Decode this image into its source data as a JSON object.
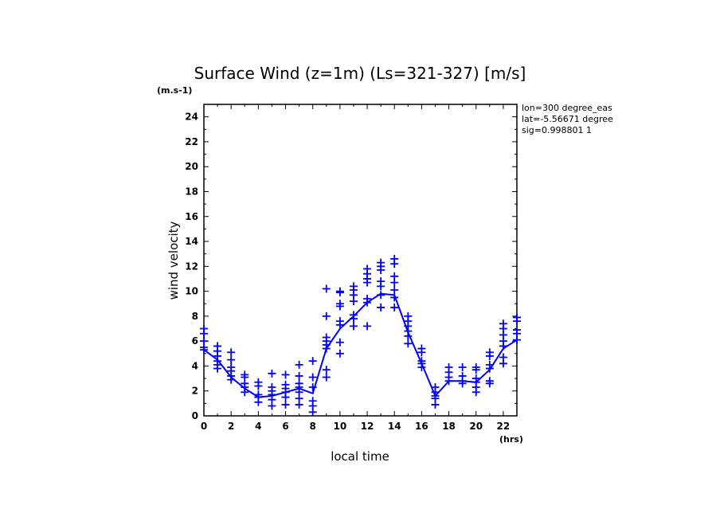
{
  "chart_data": {
    "type": "scatter",
    "title": "Surface Wind (z=1m) (Ls=321-327) [m/s]",
    "ylabel": "wind velocity",
    "yunit": "(m.s-1)",
    "xlabel": "local time",
    "xunit": "(hrs)",
    "xlim": [
      0,
      23
    ],
    "ylim": [
      0,
      25
    ],
    "xticks": [
      0,
      2,
      4,
      6,
      8,
      10,
      12,
      14,
      16,
      18,
      20,
      22
    ],
    "yticks": [
      0,
      2,
      4,
      6,
      8,
      10,
      12,
      14,
      16,
      18,
      20,
      22,
      24
    ],
    "annotations": [
      "lon=300 degree_eas",
      "lat=-5.56671 degree",
      "sig=0.998801 1"
    ],
    "colors": {
      "series": "#0000ff",
      "axes": "#000000"
    },
    "mean_line": {
      "x": [
        0,
        1,
        2,
        3,
        4,
        5,
        6,
        7,
        8,
        9,
        10,
        11,
        12,
        13,
        14,
        15,
        16,
        17,
        18,
        19,
        20,
        21,
        22,
        23
      ],
      "y": [
        5.3,
        4.5,
        3.1,
        2.2,
        1.5,
        1.6,
        1.9,
        2.2,
        1.8,
        5.4,
        7.0,
        8.0,
        9.1,
        9.8,
        9.7,
        6.7,
        4.2,
        1.6,
        2.8,
        2.8,
        2.7,
        3.7,
        5.4,
        6.1
      ]
    },
    "points": [
      [
        0,
        7.0
      ],
      [
        0,
        6.6
      ],
      [
        0,
        6.0
      ],
      [
        0,
        5.5
      ],
      [
        0,
        5.3
      ],
      [
        1,
        5.6
      ],
      [
        1,
        5.2
      ],
      [
        1,
        4.8
      ],
      [
        1,
        4.4
      ],
      [
        1,
        4.1
      ],
      [
        1,
        3.8
      ],
      [
        2,
        5.1
      ],
      [
        2,
        4.5
      ],
      [
        2,
        3.9
      ],
      [
        2,
        3.6
      ],
      [
        2,
        3.2
      ],
      [
        2,
        2.9
      ],
      [
        3,
        3.3
      ],
      [
        3,
        3.1
      ],
      [
        3,
        2.6
      ],
      [
        3,
        2.3
      ],
      [
        3,
        1.9
      ],
      [
        4,
        2.7
      ],
      [
        4,
        2.4
      ],
      [
        4,
        1.7
      ],
      [
        4,
        1.5
      ],
      [
        4,
        1.1
      ],
      [
        5,
        3.4
      ],
      [
        5,
        2.3
      ],
      [
        5,
        2.0
      ],
      [
        5,
        1.7
      ],
      [
        5,
        1.3
      ],
      [
        5,
        0.8
      ],
      [
        6,
        3.3
      ],
      [
        6,
        2.5
      ],
      [
        6,
        2.2
      ],
      [
        6,
        1.9
      ],
      [
        6,
        1.5
      ],
      [
        6,
        0.9
      ],
      [
        7,
        4.1
      ],
      [
        7,
        3.2
      ],
      [
        7,
        2.6
      ],
      [
        7,
        2.3
      ],
      [
        7,
        1.9
      ],
      [
        7,
        1.4
      ],
      [
        7,
        0.9
      ],
      [
        8,
        4.4
      ],
      [
        8,
        3.1
      ],
      [
        8,
        2.3
      ],
      [
        8,
        1.2
      ],
      [
        8,
        0.8
      ],
      [
        8,
        0.3
      ],
      [
        9,
        10.2
      ],
      [
        9,
        8.0
      ],
      [
        9,
        6.3
      ],
      [
        9,
        6.0
      ],
      [
        9,
        5.7
      ],
      [
        9,
        5.4
      ],
      [
        9,
        3.7
      ],
      [
        9,
        3.1
      ],
      [
        10,
        10.0
      ],
      [
        10,
        9.9
      ],
      [
        10,
        9.0
      ],
      [
        10,
        8.8
      ],
      [
        10,
        7.6
      ],
      [
        10,
        7.3
      ],
      [
        10,
        5.9
      ],
      [
        10,
        5.0
      ],
      [
        11,
        10.4
      ],
      [
        11,
        10.1
      ],
      [
        11,
        9.7
      ],
      [
        11,
        9.2
      ],
      [
        11,
        8.1
      ],
      [
        11,
        7.8
      ],
      [
        11,
        7.2
      ],
      [
        12,
        11.8
      ],
      [
        12,
        11.4
      ],
      [
        12,
        11.0
      ],
      [
        12,
        10.7
      ],
      [
        12,
        9.4
      ],
      [
        12,
        9.1
      ],
      [
        12,
        7.2
      ],
      [
        13,
        12.3
      ],
      [
        13,
        12.0
      ],
      [
        13,
        11.7
      ],
      [
        13,
        10.8
      ],
      [
        13,
        10.4
      ],
      [
        13,
        9.7
      ],
      [
        13,
        8.7
      ],
      [
        14,
        12.6
      ],
      [
        14,
        12.2
      ],
      [
        14,
        11.2
      ],
      [
        14,
        10.7
      ],
      [
        14,
        10.1
      ],
      [
        14,
        9.5
      ],
      [
        14,
        8.7
      ],
      [
        15,
        8.0
      ],
      [
        15,
        7.6
      ],
      [
        15,
        7.2
      ],
      [
        15,
        6.8
      ],
      [
        15,
        6.4
      ],
      [
        15,
        5.8
      ],
      [
        16,
        5.4
      ],
      [
        16,
        5.1
      ],
      [
        16,
        4.4
      ],
      [
        16,
        4.2
      ],
      [
        16,
        3.9
      ],
      [
        17,
        2.3
      ],
      [
        17,
        1.9
      ],
      [
        17,
        1.6
      ],
      [
        17,
        1.4
      ],
      [
        17,
        0.9
      ],
      [
        18,
        3.9
      ],
      [
        18,
        3.5
      ],
      [
        18,
        3.1
      ],
      [
        18,
        2.8
      ],
      [
        19,
        3.9
      ],
      [
        19,
        3.2
      ],
      [
        19,
        2.8
      ],
      [
        19,
        2.6
      ],
      [
        20,
        3.9
      ],
      [
        20,
        3.7
      ],
      [
        20,
        3.0
      ],
      [
        20,
        2.7
      ],
      [
        20,
        2.3
      ],
      [
        20,
        1.9
      ],
      [
        21,
        5.1
      ],
      [
        21,
        4.8
      ],
      [
        21,
        4.1
      ],
      [
        21,
        3.8
      ],
      [
        21,
        2.8
      ],
      [
        21,
        2.6
      ],
      [
        22,
        7.4
      ],
      [
        22,
        7.0
      ],
      [
        22,
        6.5
      ],
      [
        22,
        6.0
      ],
      [
        22,
        5.6
      ],
      [
        22,
        4.7
      ],
      [
        22,
        4.2
      ],
      [
        23,
        7.9
      ],
      [
        23,
        7.6
      ],
      [
        23,
        6.9
      ],
      [
        23,
        6.6
      ],
      [
        23,
        6.1
      ]
    ]
  }
}
